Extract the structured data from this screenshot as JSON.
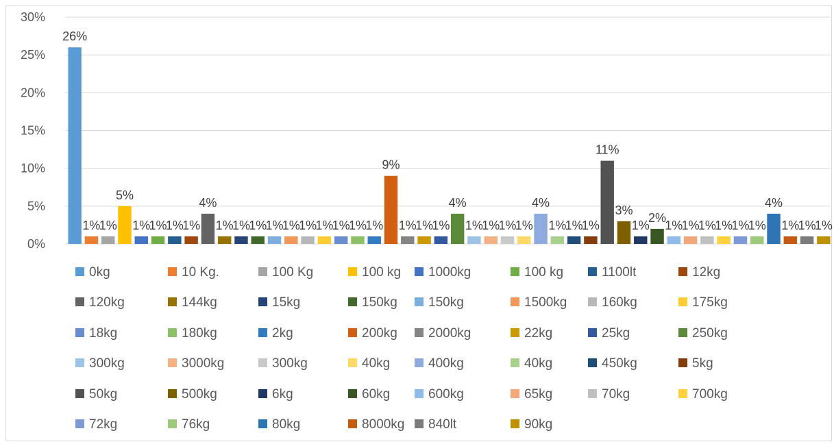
{
  "chart_data": {
    "type": "bar",
    "title": "",
    "xlabel": "",
    "ylabel": "",
    "ylim": [
      0,
      30
    ],
    "yticks": [
      "0%",
      "5%",
      "10%",
      "15%",
      "20%",
      "25%",
      "30%"
    ],
    "ytick_values": [
      0,
      5,
      10,
      15,
      20,
      25,
      30
    ],
    "grid": true,
    "legend_placement": "bottom",
    "series": [
      {
        "name": "0kg",
        "value": 26,
        "label": "26%",
        "color": "#5b9bd5"
      },
      {
        "name": "10 Kg.",
        "value": 1,
        "label": "1%",
        "color": "#ed7d31"
      },
      {
        "name": "100 Kg",
        "value": 1,
        "label": "1%",
        "color": "#a5a5a5"
      },
      {
        "name": "100 kg",
        "value": 5,
        "label": "5%",
        "color": "#ffc000"
      },
      {
        "name": "1000kg",
        "value": 1,
        "label": "1%",
        "color": "#4472c4"
      },
      {
        "name": "100 kg",
        "value": 1,
        "label": "1%",
        "color": "#70ad47"
      },
      {
        "name": "1100lt",
        "value": 1,
        "label": "1%",
        "color": "#255e91"
      },
      {
        "name": "12kg",
        "value": 1,
        "label": "1%",
        "color": "#9e480e"
      },
      {
        "name": "120kg",
        "value": 4,
        "label": "4%",
        "color": "#636363"
      },
      {
        "name": "144kg",
        "value": 1,
        "label": "1%",
        "color": "#997300"
      },
      {
        "name": "15kg",
        "value": 1,
        "label": "1%",
        "color": "#264478"
      },
      {
        "name": "150kg",
        "value": 1,
        "label": "1%",
        "color": "#43682b"
      },
      {
        "name": "150kg",
        "value": 1,
        "label": "1%",
        "color": "#7cafdd"
      },
      {
        "name": "1500kg",
        "value": 1,
        "label": "1%",
        "color": "#f1975a"
      },
      {
        "name": "160kg",
        "value": 1,
        "label": "1%",
        "color": "#b7b7b7"
      },
      {
        "name": "175kg",
        "value": 1,
        "label": "1%",
        "color": "#ffcd33"
      },
      {
        "name": "18kg",
        "value": 1,
        "label": "1%",
        "color": "#698ed0"
      },
      {
        "name": "180kg",
        "value": 1,
        "label": "1%",
        "color": "#8cc168"
      },
      {
        "name": "2kg",
        "value": 1,
        "label": "1%",
        "color": "#327dc2"
      },
      {
        "name": "200kg",
        "value": 9,
        "label": "9%",
        "color": "#d26012"
      },
      {
        "name": "2000kg",
        "value": 1,
        "label": "1%",
        "color": "#848484"
      },
      {
        "name": "22kg",
        "value": 1,
        "label": "1%",
        "color": "#cc9a00"
      },
      {
        "name": "25kg",
        "value": 1,
        "label": "1%",
        "color": "#335aa1"
      },
      {
        "name": "250kg",
        "value": 4,
        "label": "4%",
        "color": "#5a8a39"
      },
      {
        "name": "300kg",
        "value": 1,
        "label": "1%",
        "color": "#9dc3e6"
      },
      {
        "name": "3000kg",
        "value": 1,
        "label": "1%",
        "color": "#f4b183"
      },
      {
        "name": "300kg",
        "value": 1,
        "label": "1%",
        "color": "#c9c9c9"
      },
      {
        "name": "40kg",
        "value": 1,
        "label": "1%",
        "color": "#ffd966"
      },
      {
        "name": "400kg",
        "value": 4,
        "label": "4%",
        "color": "#8faadc"
      },
      {
        "name": "40kg",
        "value": 1,
        "label": "1%",
        "color": "#a9d18e"
      },
      {
        "name": "450kg",
        "value": 1,
        "label": "1%",
        "color": "#1f4e79"
      },
      {
        "name": "5kg",
        "value": 1,
        "label": "1%",
        "color": "#843c0c"
      },
      {
        "name": "50kg",
        "value": 11,
        "label": "11%",
        "color": "#525252"
      },
      {
        "name": "500kg",
        "value": 3,
        "label": "3%",
        "color": "#7f6000"
      },
      {
        "name": "6kg",
        "value": 1,
        "label": "1%",
        "color": "#203864"
      },
      {
        "name": "60kg",
        "value": 2,
        "label": "2%",
        "color": "#385723"
      },
      {
        "name": "600kg",
        "value": 1,
        "label": "1%",
        "color": "#8fbbe6"
      },
      {
        "name": "65kg",
        "value": 1,
        "label": "1%",
        "color": "#f4a77a"
      },
      {
        "name": "70kg",
        "value": 1,
        "label": "1%",
        "color": "#c0c0c0"
      },
      {
        "name": "700kg",
        "value": 1,
        "label": "1%",
        "color": "#ffd040"
      },
      {
        "name": "72kg",
        "value": 1,
        "label": "1%",
        "color": "#7e9ad6"
      },
      {
        "name": "76kg",
        "value": 1,
        "label": "1%",
        "color": "#9dcb7c"
      },
      {
        "name": "80kg",
        "value": 4,
        "label": "4%",
        "color": "#2e75b6"
      },
      {
        "name": "8000kg",
        "value": 1,
        "label": "1%",
        "color": "#c55a11"
      },
      {
        "name": "840lt",
        "value": 1,
        "label": "1%",
        "color": "#7b7b7b"
      },
      {
        "name": "90kg",
        "value": 1,
        "label": "1%",
        "color": "#bf9000"
      }
    ]
  }
}
